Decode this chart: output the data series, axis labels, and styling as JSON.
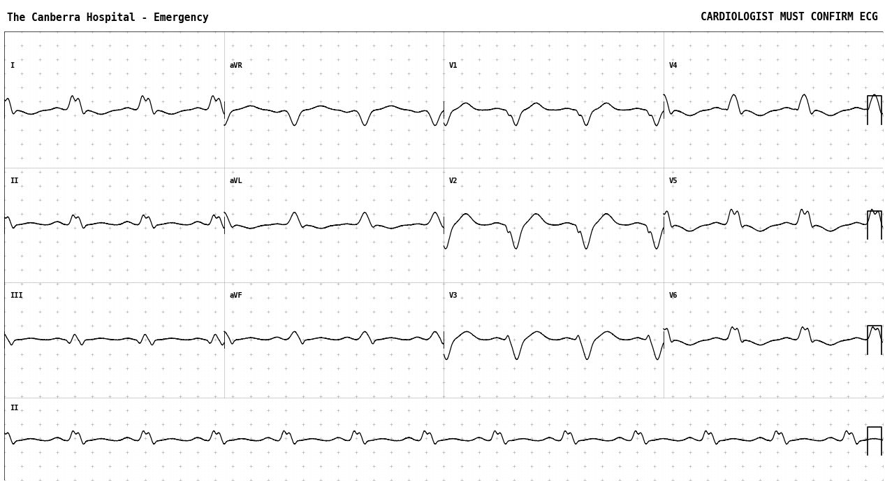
{
  "title_left": "The Canberra Hospital - Emergency",
  "title_right": "CARDIOLOGIST MUST CONFIRM ECG",
  "bg_color": "#ffffff",
  "grid_dot_color": "#cccccc",
  "grid_major_color": "#aaaaaa",
  "line_color": "#000000",
  "fig_width": 12.67,
  "fig_height": 6.94,
  "dpi": 100,
  "hr": 75,
  "rows_leads": [
    [
      "I",
      "aVR",
      "V1",
      "V4"
    ],
    [
      "II",
      "aVL",
      "V2",
      "V5"
    ],
    [
      "III",
      "aVF",
      "V3",
      "V6"
    ]
  ],
  "rhythm_lead": "II",
  "col_dur": 2.5,
  "fs": 500
}
